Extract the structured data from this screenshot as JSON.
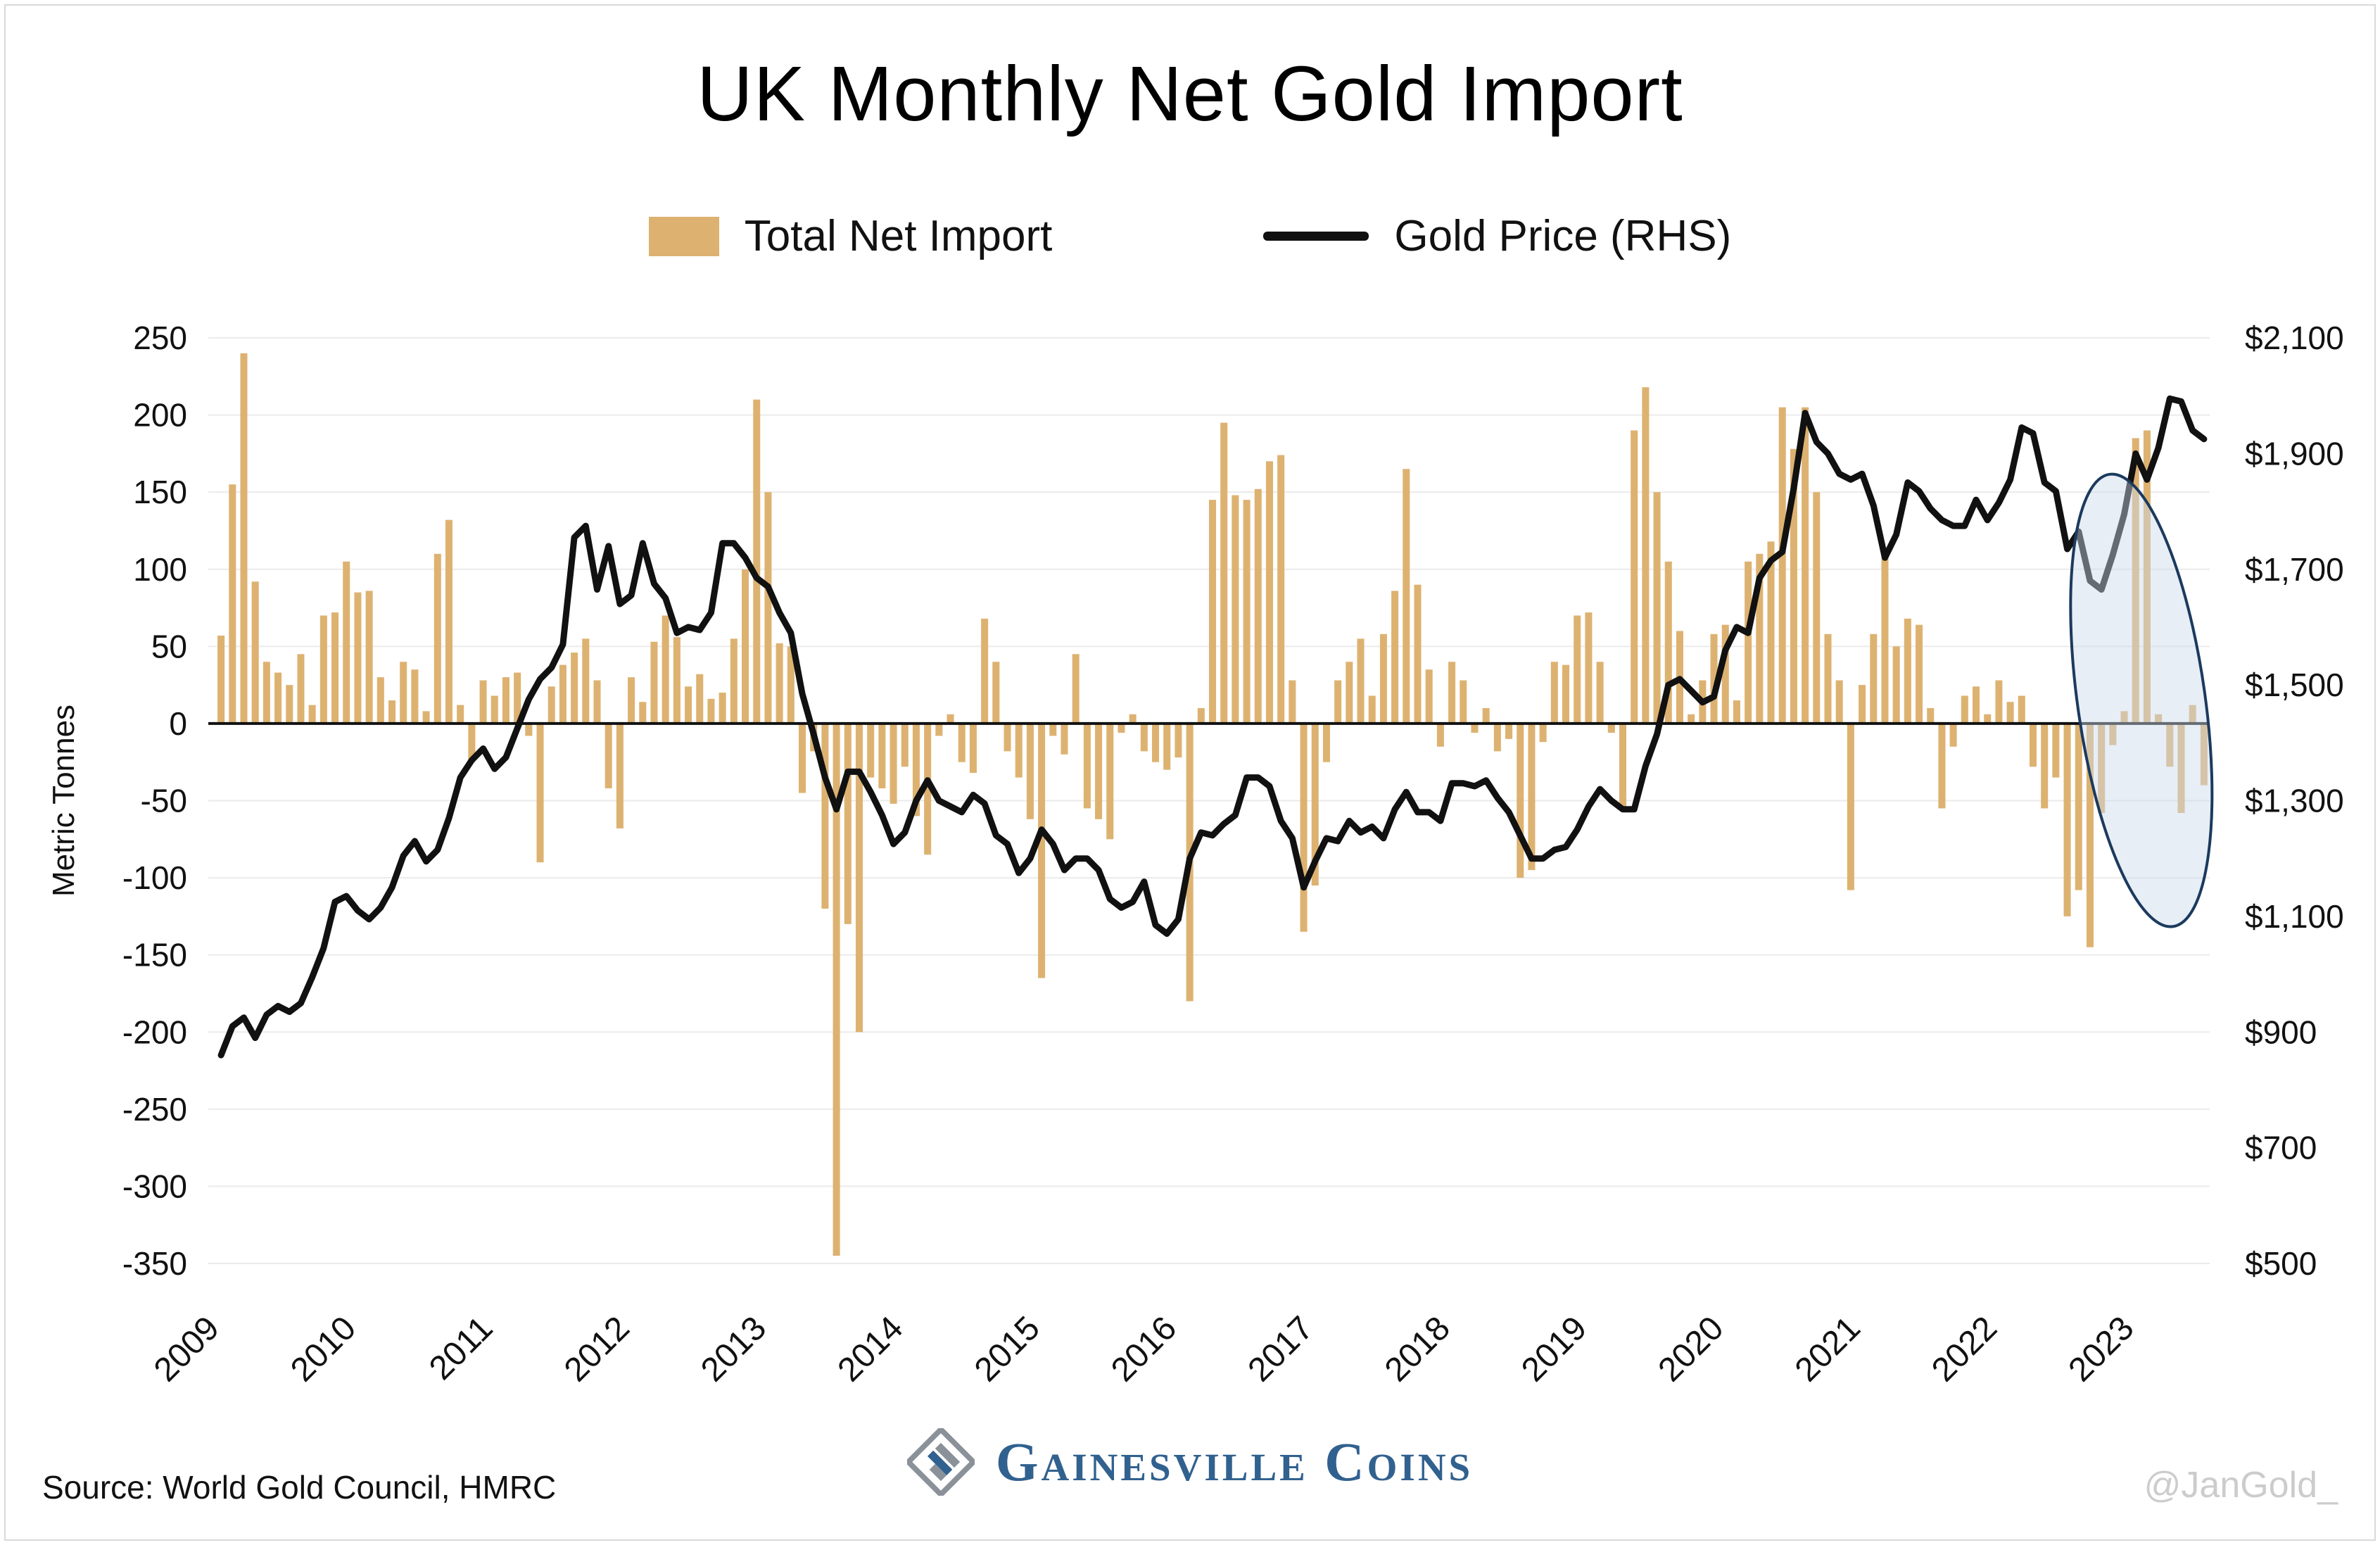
{
  "page": {
    "title": "UK Monthly Net Gold Import",
    "source": "Source: World Gold Council, HMRC",
    "watermark": "@JanGold_",
    "brand": "Gainesville Coins"
  },
  "legend": [
    {
      "label": "Total Net Import",
      "type": "bar",
      "color": "#DDB271"
    },
    {
      "label": "Gold Price (RHS)",
      "type": "line",
      "color": "#111111"
    }
  ],
  "chart_data": {
    "type": "bar",
    "subtype": "combo-bar-line",
    "title": "UK Monthly Net Gold Import",
    "x_start": "2009-01",
    "x_end": "2023-07",
    "x_tick_labels": [
      "2009",
      "2010",
      "2011",
      "2012",
      "2013",
      "2014",
      "2015",
      "2016",
      "2017",
      "2018",
      "2019",
      "2020",
      "2021",
      "2022",
      "2023"
    ],
    "left_axis": {
      "label": "Metric Tonnes",
      "min": -350,
      "max": 250,
      "tick_step": 50,
      "ticks": [
        250,
        200,
        150,
        100,
        50,
        0,
        -50,
        -100,
        -150,
        -200,
        -250,
        -300,
        -350
      ]
    },
    "right_axis": {
      "label": "Gold Price (RHS)",
      "min": 500,
      "max": 2100,
      "tick_step": 200,
      "ticks": [
        "$2,100",
        "$1,900",
        "$1,700",
        "$1,500",
        "$1,300",
        "$1,100",
        "$900",
        "$700",
        "$500"
      ],
      "tick_values": [
        2100,
        1900,
        1700,
        1500,
        1300,
        1100,
        900,
        700,
        500
      ]
    },
    "grid": true,
    "legend_position": "top",
    "series": [
      {
        "name": "Total Net Import",
        "type": "bar",
        "axis": "left",
        "color": "#DDB271",
        "values": [
          57,
          155,
          240,
          92,
          40,
          33,
          25,
          45,
          12,
          70,
          72,
          105,
          85,
          86,
          30,
          15,
          40,
          35,
          8,
          110,
          132,
          12,
          -25,
          28,
          18,
          30,
          33,
          -8,
          -90,
          24,
          38,
          46,
          55,
          28,
          -42,
          -68,
          30,
          14,
          53,
          70,
          56,
          24,
          32,
          16,
          20,
          55,
          100,
          210,
          150,
          52,
          50,
          -45,
          -18,
          -120,
          -345,
          -130,
          -200,
          -35,
          -42,
          -52,
          -28,
          -60,
          -85,
          -8,
          6,
          -25,
          -32,
          68,
          40,
          -18,
          -35,
          -62,
          -165,
          -8,
          -20,
          45,
          -55,
          -62,
          -75,
          -6,
          6,
          -18,
          -25,
          -30,
          -22,
          -180,
          10,
          145,
          195,
          148,
          145,
          152,
          170,
          174,
          28,
          -135,
          -105,
          -25,
          28,
          40,
          55,
          18,
          58,
          86,
          165,
          90,
          35,
          -15,
          40,
          28,
          -6,
          10,
          -18,
          -10,
          -100,
          -95,
          -12,
          40,
          38,
          70,
          72,
          40,
          -6,
          -55,
          190,
          218,
          150,
          105,
          60,
          6,
          28,
          58,
          64,
          15,
          105,
          110,
          118,
          205,
          178,
          205,
          150,
          58,
          28,
          -108,
          25,
          58,
          110,
          50,
          68,
          64,
          10,
          -55,
          -15,
          18,
          24,
          6,
          28,
          14,
          18,
          -28,
          -55,
          -35,
          -125,
          -108,
          -145,
          -58,
          -14,
          8,
          185,
          190,
          6,
          -28,
          -58,
          12,
          -40
        ]
      },
      {
        "name": "Gold Price (RHS)",
        "type": "line",
        "axis": "right",
        "color": "#111111",
        "values": [
          860,
          910,
          925,
          890,
          930,
          945,
          935,
          950,
          995,
          1045,
          1125,
          1135,
          1110,
          1095,
          1115,
          1150,
          1205,
          1230,
          1195,
          1215,
          1270,
          1340,
          1370,
          1390,
          1355,
          1375,
          1425,
          1475,
          1510,
          1530,
          1570,
          1755,
          1775,
          1665,
          1740,
          1640,
          1655,
          1745,
          1675,
          1650,
          1590,
          1600,
          1595,
          1625,
          1745,
          1745,
          1720,
          1685,
          1670,
          1625,
          1590,
          1485,
          1415,
          1340,
          1285,
          1350,
          1350,
          1315,
          1275,
          1225,
          1245,
          1300,
          1335,
          1300,
          1290,
          1280,
          1310,
          1295,
          1240,
          1225,
          1175,
          1200,
          1250,
          1225,
          1180,
          1200,
          1200,
          1180,
          1130,
          1115,
          1125,
          1160,
          1085,
          1070,
          1095,
          1200,
          1245,
          1240,
          1260,
          1275,
          1340,
          1340,
          1325,
          1265,
          1235,
          1150,
          1195,
          1235,
          1230,
          1265,
          1245,
          1255,
          1235,
          1285,
          1315,
          1280,
          1280,
          1265,
          1330,
          1330,
          1325,
          1335,
          1305,
          1280,
          1240,
          1200,
          1200,
          1215,
          1220,
          1250,
          1290,
          1320,
          1300,
          1285,
          1285,
          1360,
          1415,
          1500,
          1510,
          1490,
          1470,
          1480,
          1560,
          1600,
          1590,
          1685,
          1715,
          1730,
          1840,
          1970,
          1920,
          1900,
          1865,
          1855,
          1865,
          1810,
          1720,
          1760,
          1850,
          1835,
          1805,
          1785,
          1775,
          1775,
          1820,
          1785,
          1815,
          1855,
          1945,
          1935,
          1850,
          1835,
          1735,
          1765,
          1680,
          1665,
          1725,
          1795,
          1900,
          1855,
          1910,
          1995,
          1990,
          1940,
          1925
        ]
      }
    ],
    "annotation": {
      "type": "ellipse",
      "purpose": "highlight recent 2023 months",
      "center_month_index": 168.5,
      "tonnes_center": 15,
      "tonnes_half_range": 148,
      "months_half_range": 5.6,
      "rotation_deg": -8,
      "fill": "#CBD9EB",
      "fill_opacity": 0.45,
      "stroke": "#1B3A5E"
    }
  }
}
